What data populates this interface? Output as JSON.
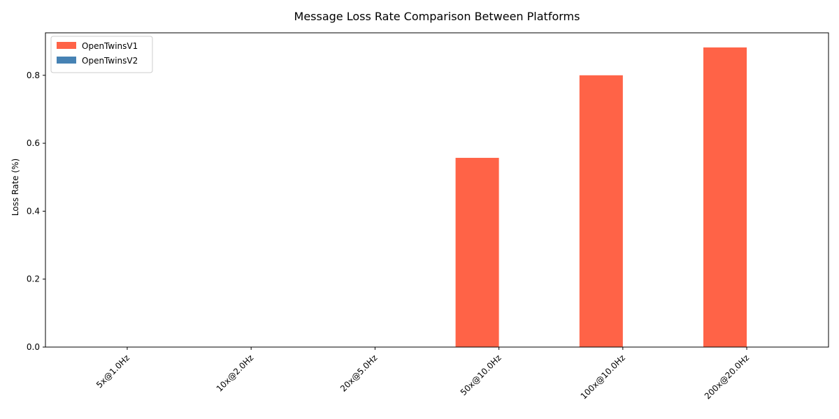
{
  "chart_data": {
    "type": "bar",
    "title": "Message Loss Rate Comparison Between Platforms",
    "xlabel": "",
    "ylabel": "Loss Rate (%)",
    "categories": [
      "5x@1.0Hz",
      "10x@2.0Hz",
      "20x@5.0Hz",
      "50x@10.0Hz",
      "100x@10.0Hz",
      "200x@20.0Hz"
    ],
    "series": [
      {
        "name": "OpenTwinsV1",
        "color": "#ff6347",
        "values": [
          0,
          0,
          0,
          0.557,
          0.8,
          0.882
        ]
      },
      {
        "name": "OpenTwinsV2",
        "color": "#4682b4",
        "values": [
          0,
          0,
          0,
          0,
          0,
          0
        ]
      }
    ],
    "ylim": [
      0,
      0.925
    ],
    "yticks": [
      0.0,
      0.2,
      0.4,
      0.6,
      0.8
    ],
    "ytick_labels": [
      "0.0",
      "0.2",
      "0.4",
      "0.6",
      "0.8"
    ],
    "legend": "top-left",
    "grid": false
  }
}
